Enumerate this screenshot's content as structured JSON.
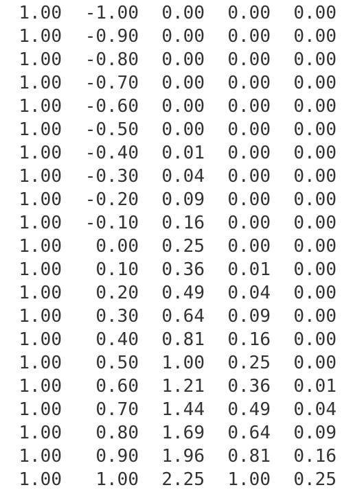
{
  "matrix": {
    "rows": [
      [
        "1.00",
        "-1.00",
        "0.00",
        "0.00",
        "0.00"
      ],
      [
        "1.00",
        "-0.90",
        "0.00",
        "0.00",
        "0.00"
      ],
      [
        "1.00",
        "-0.80",
        "0.00",
        "0.00",
        "0.00"
      ],
      [
        "1.00",
        "-0.70",
        "0.00",
        "0.00",
        "0.00"
      ],
      [
        "1.00",
        "-0.60",
        "0.00",
        "0.00",
        "0.00"
      ],
      [
        "1.00",
        "-0.50",
        "0.00",
        "0.00",
        "0.00"
      ],
      [
        "1.00",
        "-0.40",
        "0.01",
        "0.00",
        "0.00"
      ],
      [
        "1.00",
        "-0.30",
        "0.04",
        "0.00",
        "0.00"
      ],
      [
        "1.00",
        "-0.20",
        "0.09",
        "0.00",
        "0.00"
      ],
      [
        "1.00",
        "-0.10",
        "0.16",
        "0.00",
        "0.00"
      ],
      [
        "1.00",
        "0.00",
        "0.25",
        "0.00",
        "0.00"
      ],
      [
        "1.00",
        "0.10",
        "0.36",
        "0.01",
        "0.00"
      ],
      [
        "1.00",
        "0.20",
        "0.49",
        "0.04",
        "0.00"
      ],
      [
        "1.00",
        "0.30",
        "0.64",
        "0.09",
        "0.00"
      ],
      [
        "1.00",
        "0.40",
        "0.81",
        "0.16",
        "0.00"
      ],
      [
        "1.00",
        "0.50",
        "1.00",
        "0.25",
        "0.00"
      ],
      [
        "1.00",
        "0.60",
        "1.21",
        "0.36",
        "0.01"
      ],
      [
        "1.00",
        "0.70",
        "1.44",
        "0.49",
        "0.04"
      ],
      [
        "1.00",
        "0.80",
        "1.69",
        "0.64",
        "0.09"
      ],
      [
        "1.00",
        "0.90",
        "1.96",
        "0.81",
        "0.16"
      ],
      [
        "1.00",
        "1.00",
        "2.25",
        "1.00",
        "0.25"
      ]
    ]
  }
}
